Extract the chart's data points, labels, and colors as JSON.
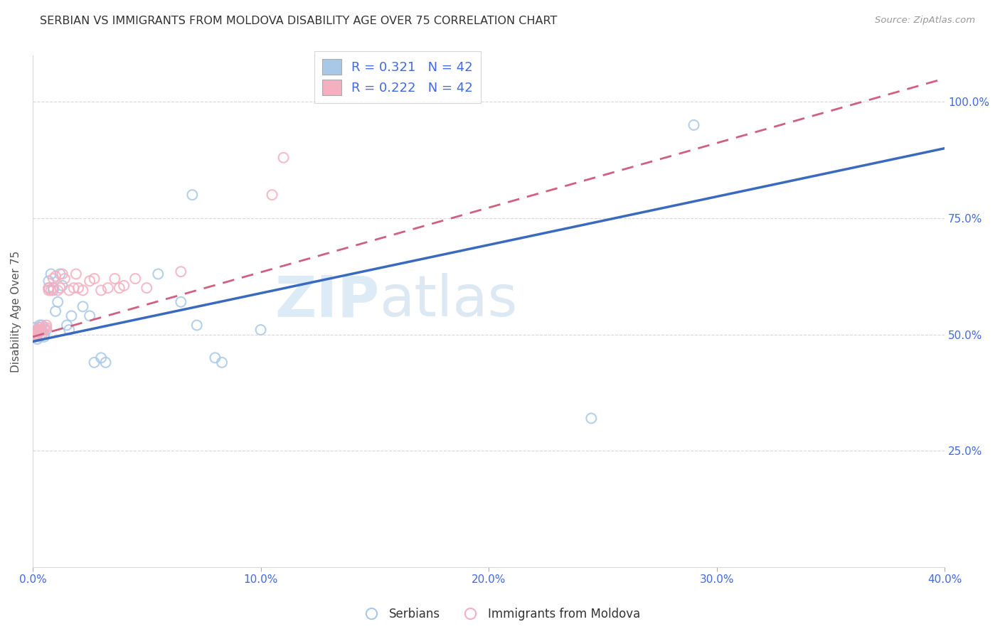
{
  "title": "SERBIAN VS IMMIGRANTS FROM MOLDOVA DISABILITY AGE OVER 75 CORRELATION CHART",
  "source": "Source: ZipAtlas.com",
  "ylabel": "Disability Age Over 75",
  "xlim": [
    0.0,
    0.4
  ],
  "ylim": [
    0.0,
    1.1
  ],
  "xtick_labels": [
    "0.0%",
    "10.0%",
    "20.0%",
    "30.0%",
    "40.0%"
  ],
  "xtick_values": [
    0.0,
    0.1,
    0.2,
    0.3,
    0.4
  ],
  "ytick_labels": [
    "25.0%",
    "50.0%",
    "75.0%",
    "100.0%"
  ],
  "ytick_values": [
    0.25,
    0.5,
    0.75,
    1.0
  ],
  "legend1_label": "R = 0.321   N = 42",
  "legend2_label": "R = 0.222   N = 42",
  "legend_label_serbians": "Serbians",
  "legend_label_moldova": "Immigrants from Moldova",
  "blue_color": "#a8c8e8",
  "pink_color": "#f4afc0",
  "blue_line_color": "#3a6abf",
  "pink_line_color": "#d06080",
  "watermark_zip": "ZIP",
  "watermark_atlas": "atlas",
  "blue_R": 0.321,
  "pink_R": 0.222,
  "serbians_x": [
    0.001,
    0.001,
    0.001,
    0.002,
    0.002,
    0.002,
    0.003,
    0.003,
    0.003,
    0.003,
    0.004,
    0.004,
    0.004,
    0.005,
    0.005,
    0.006,
    0.007,
    0.007,
    0.008,
    0.009,
    0.009,
    0.01,
    0.011,
    0.012,
    0.013,
    0.015,
    0.016,
    0.017,
    0.022,
    0.025,
    0.027,
    0.03,
    0.032,
    0.055,
    0.065,
    0.07,
    0.072,
    0.08,
    0.083,
    0.1,
    0.245,
    0.29
  ],
  "serbians_y": [
    0.495,
    0.505,
    0.515,
    0.49,
    0.5,
    0.51,
    0.495,
    0.505,
    0.515,
    0.52,
    0.5,
    0.51,
    0.52,
    0.5,
    0.495,
    0.51,
    0.615,
    0.6,
    0.63,
    0.595,
    0.6,
    0.55,
    0.57,
    0.63,
    0.605,
    0.52,
    0.51,
    0.54,
    0.56,
    0.54,
    0.44,
    0.45,
    0.44,
    0.63,
    0.57,
    0.8,
    0.52,
    0.45,
    0.44,
    0.51,
    0.32,
    0.95
  ],
  "moldova_x": [
    0.001,
    0.001,
    0.001,
    0.002,
    0.002,
    0.002,
    0.003,
    0.003,
    0.003,
    0.004,
    0.004,
    0.005,
    0.005,
    0.006,
    0.006,
    0.007,
    0.007,
    0.008,
    0.009,
    0.009,
    0.01,
    0.011,
    0.012,
    0.013,
    0.014,
    0.016,
    0.018,
    0.019,
    0.02,
    0.022,
    0.025,
    0.027,
    0.03,
    0.033,
    0.036,
    0.038,
    0.04,
    0.045,
    0.05,
    0.065,
    0.105,
    0.11
  ],
  "moldova_y": [
    0.495,
    0.5,
    0.505,
    0.5,
    0.505,
    0.51,
    0.51,
    0.505,
    0.515,
    0.5,
    0.51,
    0.515,
    0.51,
    0.515,
    0.52,
    0.6,
    0.595,
    0.595,
    0.6,
    0.62,
    0.625,
    0.595,
    0.6,
    0.63,
    0.62,
    0.595,
    0.6,
    0.63,
    0.6,
    0.595,
    0.615,
    0.62,
    0.595,
    0.6,
    0.62,
    0.6,
    0.605,
    0.62,
    0.6,
    0.635,
    0.8,
    0.88
  ],
  "blue_line_x0": 0.0,
  "blue_line_y0": 0.485,
  "blue_line_x1": 0.4,
  "blue_line_y1": 0.9,
  "pink_line_x0": 0.0,
  "pink_line_y0": 0.495,
  "pink_line_x1": 0.4,
  "pink_line_y1": 1.05
}
